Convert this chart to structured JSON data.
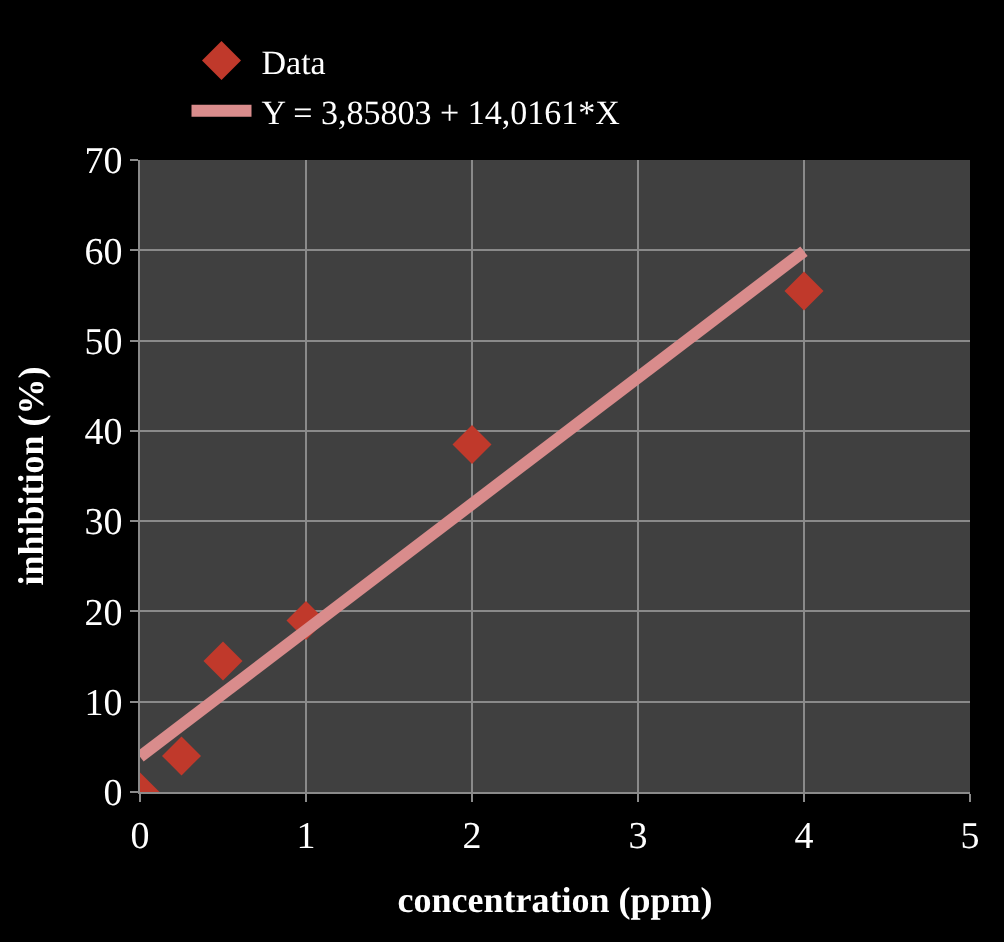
{
  "chart_data": {
    "type": "scatter",
    "xlabel": "concentration (ppm)",
    "ylabel": "inhibition (%)",
    "xlim": [
      0,
      5
    ],
    "xticks": [
      0,
      1,
      2,
      3,
      4,
      5
    ],
    "ylim": [
      0,
      70
    ],
    "yticks": [
      0,
      10,
      20,
      30,
      40,
      50,
      60,
      70
    ],
    "grid": true,
    "legend": "top",
    "marker": "diamond",
    "series": [
      {
        "name": "Data",
        "color": "#c0392b",
        "x": [
          0,
          0.25,
          0.5,
          1,
          2,
          4
        ],
        "values": [
          0,
          4,
          14.5,
          19,
          38.5,
          55.5
        ]
      },
      {
        "name": "Y = 3,85803 + 14,0161*X",
        "type": "line",
        "color": "#d98c8c",
        "x": [
          0,
          4
        ],
        "values": [
          3.9,
          59.9
        ],
        "marker": "none",
        "line_style": "solid"
      }
    ]
  }
}
